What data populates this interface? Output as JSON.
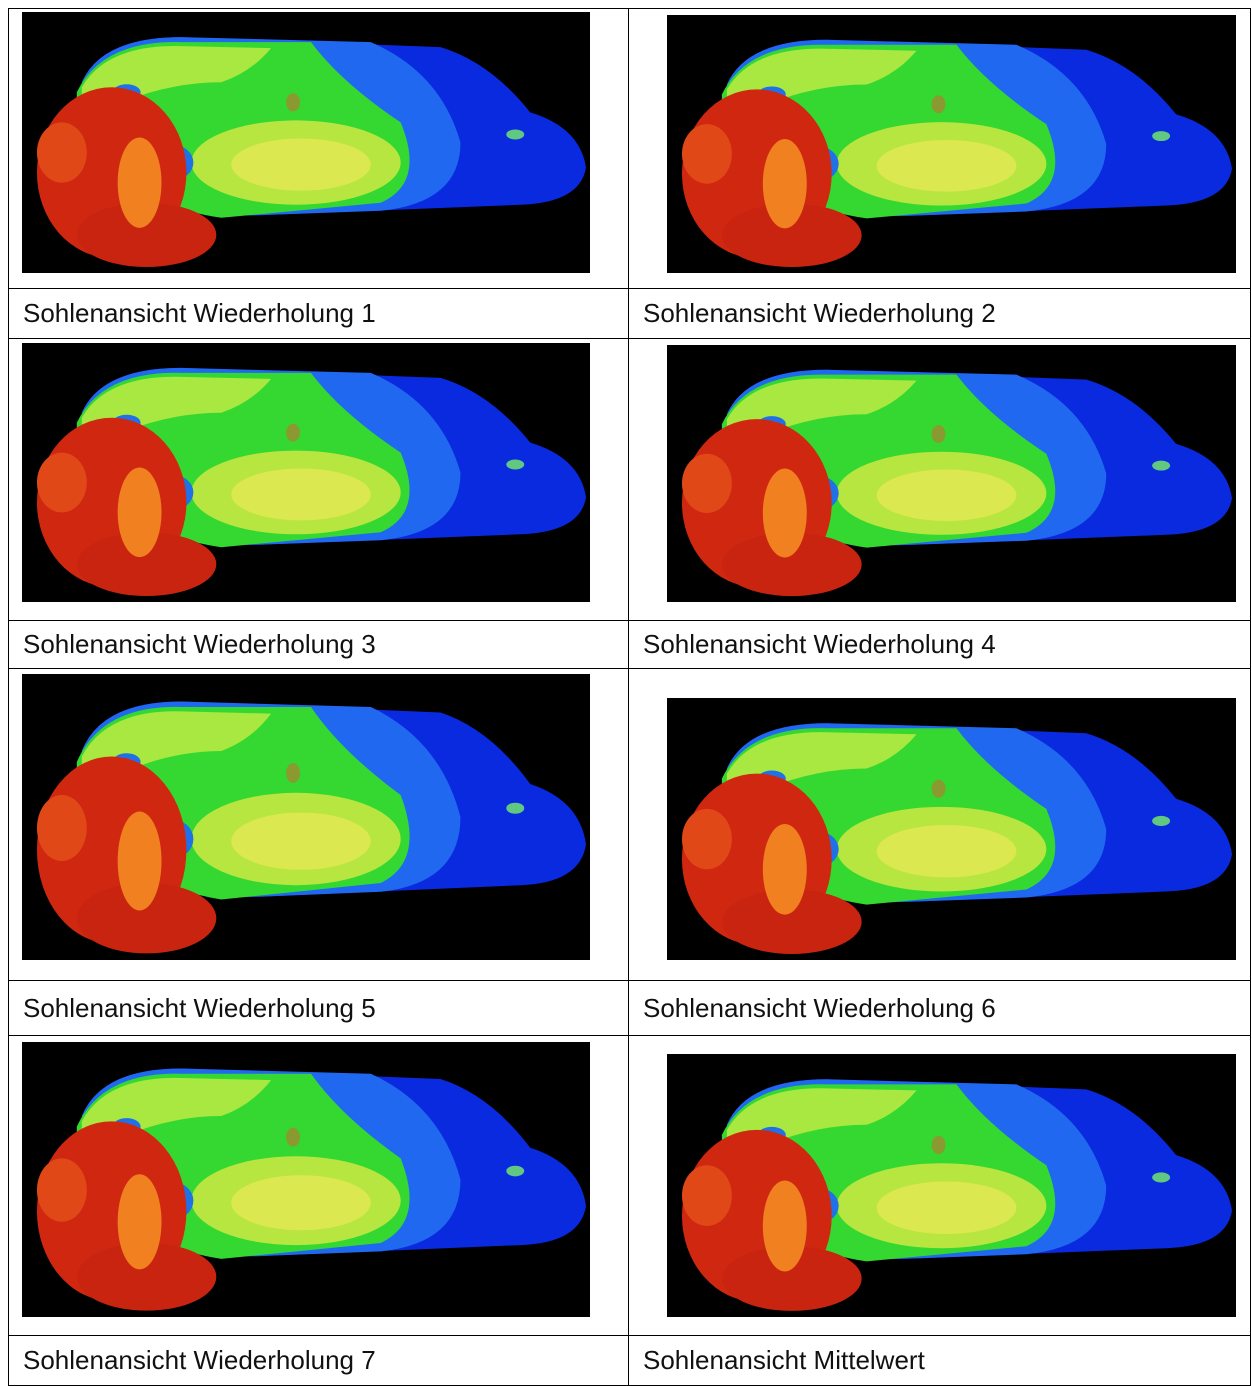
{
  "table": {
    "rows": [
      [
        "Sohlenansicht Wiederholung 1",
        "Sohlenansicht Wiederholung 2"
      ],
      [
        "Sohlenansicht Wiederholung 3",
        "Sohlenansicht Wiederholung 4"
      ],
      [
        "Sohlenansicht Wiederholung 5",
        "Sohlenansicht Wiederholung 6"
      ],
      [
        "Sohlenansicht Wiederholung 7",
        "Sohlenansicht Mittelwert"
      ]
    ]
  }
}
